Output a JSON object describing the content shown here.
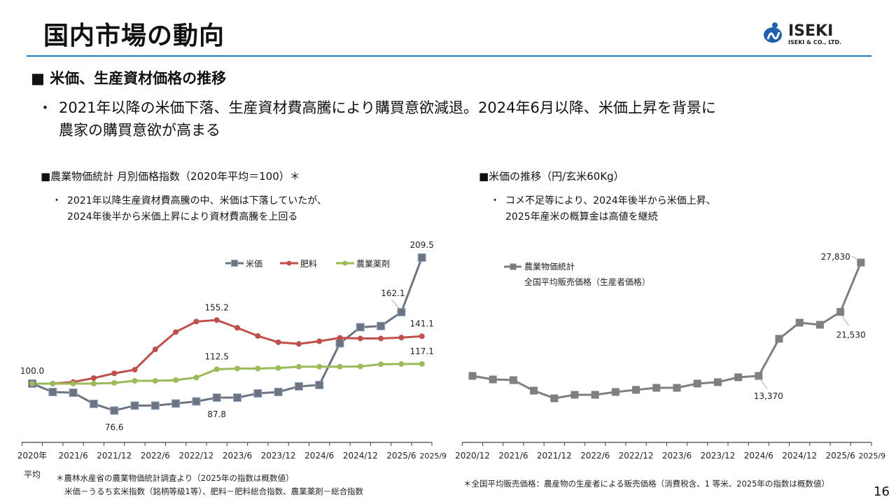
{
  "header": {
    "title": "国内市場の動向",
    "logo_text": "ISEKI",
    "logo_subtext": "ISEKI & CO., LTD."
  },
  "section": {
    "heading": "■ 米価、生産資材価格の推移",
    "bullet_mark": "・",
    "bullet_line1": "2021年以降の米価下落、生産資材費高騰により購買意欲減退。2024年6月以降、米価上昇を背景に",
    "bullet_line2": "農家の購買意欲が高まる"
  },
  "left_panel": {
    "heading": "■農業物価統計 月別価格指数（2020年平均＝100）＊",
    "bullet_mark": "・",
    "bullet_line1": "2021年以降生産資材費高騰の中、米価は下落していたが、",
    "bullet_line2": "2024年後半から米価上昇により資材費高騰を上回る",
    "footnote_line1": "＊農林水産省の農業物価統計調査より（2025年の指数は概数値）",
    "footnote_line2": "米価－うるち玄米指数（銘柄等級1等）、肥料－肥料総合指数、農業薬剤－総合指数"
  },
  "right_panel": {
    "heading": "■米価の推移（円/玄米60Kg）",
    "bullet_mark": "・",
    "bullet_line1": "コメ不足等により、2024年後半から米価上昇、",
    "bullet_line2": "2025年産米の概算金は高値を継続",
    "footnote": "＊全国平均販売価格：農産物の生産者による販売価格（消費税含、1 等米、2025年の指数は概数値）"
  },
  "page_number": "16",
  "chart_data": [
    {
      "type": "line",
      "x_tick_labels": [
        "2020年",
        "",
        "2021/6",
        "",
        "2021/12",
        "",
        "2022/6",
        "",
        "2022/12",
        "",
        "2023/6",
        "",
        "2023/12",
        "",
        "2024/6",
        "",
        "2024/12",
        "",
        "2025/6",
        "2025/9"
      ],
      "x_first_label_line2": "平均",
      "grid": false,
      "legend_position": "top-right",
      "series": [
        {
          "name": "米価",
          "color": "#6d7480",
          "marker": "square",
          "values": [
            100.0,
            92.7,
            92.1,
            82.4,
            76.6,
            80.9,
            80.9,
            82.7,
            84.5,
            87.8,
            87.8,
            91.5,
            92.7,
            97.6,
            98.8,
            135.0,
            149.0,
            150.0,
            162.1,
            209.5
          ]
        },
        {
          "name": "肥料",
          "color": "#c0504d",
          "marker": "circle",
          "values": [
            100.0,
            100.0,
            101.4,
            104.8,
            108.9,
            112.1,
            129.7,
            144.8,
            153.9,
            155.2,
            148.5,
            141.4,
            135.9,
            134.5,
            136.8,
            139.8,
            139.2,
            139.2,
            140.0,
            141.1
          ]
        },
        {
          "name": "農業薬剤",
          "color": "#9bbb59",
          "marker": "circle",
          "values": [
            100.0,
            100.0,
            100.0,
            100.0,
            100.6,
            102.4,
            102.4,
            103.0,
            105.3,
            112.5,
            113.1,
            113.1,
            113.5,
            114.7,
            114.7,
            114.7,
            114.9,
            116.8,
            117.0,
            117.1
          ]
        }
      ],
      "data_labels": [
        {
          "series": 0,
          "index": 0,
          "text": "100.0",
          "pos": "above"
        },
        {
          "series": 0,
          "index": 4,
          "text": "76.6",
          "pos": "below"
        },
        {
          "series": 0,
          "index": 9,
          "text": "87.8",
          "pos": "below"
        },
        {
          "series": 1,
          "index": 9,
          "text": "155.2",
          "pos": "above"
        },
        {
          "series": 2,
          "index": 9,
          "text": "112.5",
          "pos": "above"
        },
        {
          "series": 0,
          "index": 18,
          "text": "162.1",
          "pos": "above-left"
        },
        {
          "series": 0,
          "index": 19,
          "text": "209.5",
          "pos": "above"
        },
        {
          "series": 1,
          "index": 19,
          "text": "141.1",
          "pos": "above"
        },
        {
          "series": 2,
          "index": 19,
          "text": "117.1",
          "pos": "above"
        }
      ]
    },
    {
      "type": "line",
      "x_tick_labels": [
        "2020/12",
        "",
        "2021/6",
        "",
        "2021/12",
        "",
        "2022/6",
        "",
        "2022/12",
        "",
        "2023/6",
        "",
        "2023/12",
        "",
        "2024/6",
        "",
        "2024/12",
        "",
        "2025/6",
        "2025/9"
      ],
      "grid": false,
      "legend_position": "top-left",
      "legend_subtitle": "全国平均販売価格（生産者価格）",
      "series": [
        {
          "name": "農業物価統計",
          "color": "#7f7f7f",
          "marker": "square",
          "values": [
            13370,
            12920,
            12830,
            11490,
            10510,
            10960,
            10960,
            11320,
            11590,
            11850,
            11850,
            12390,
            12570,
            13190,
            13370,
            18100,
            20160,
            19890,
            21530,
            27830
          ]
        }
      ],
      "data_labels": [
        {
          "series": 0,
          "index": 14,
          "text": "13,370",
          "pos": "below"
        },
        {
          "series": 0,
          "index": 18,
          "text": "21,530",
          "pos": "below-right"
        },
        {
          "series": 0,
          "index": 19,
          "text": "27,830",
          "pos": "left"
        }
      ]
    }
  ]
}
